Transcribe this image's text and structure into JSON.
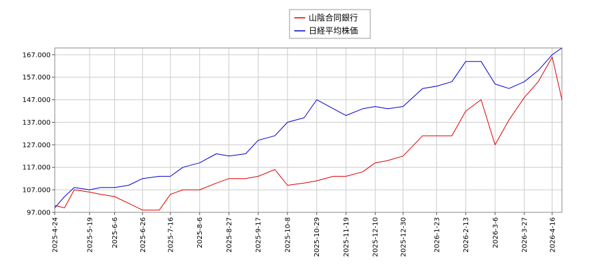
{
  "chart_data": {
    "type": "line",
    "title": "",
    "xlabel": "",
    "ylabel": "",
    "ylim": [
      97,
      170
    ],
    "y_ticks": [
      97,
      107,
      117,
      127,
      137,
      147,
      157,
      167
    ],
    "y_tick_labels": [
      "97.000",
      "107.000",
      "117.000",
      "127.000",
      "137.000",
      "147.000",
      "157.000",
      "167.000"
    ],
    "x_ticks": [
      "2025-4-24",
      "2025-5-19",
      "2025-6-6",
      "2025-6-26",
      "2025-7-16",
      "2025-8-6",
      "2025-8-27",
      "2025-9-17",
      "2025-10-8",
      "2025-10-29",
      "2025-11-19",
      "2025-12-10",
      "2025-12-30",
      "2026-1-23",
      "2026-2-13",
      "2026-3-6",
      "2026-3-27",
      "2026-4-16"
    ],
    "grid": true,
    "legend": "top-center",
    "x": [
      "2025-4-24",
      "2025-5-1",
      "2025-5-8",
      "2025-5-19",
      "2025-5-27",
      "2025-6-6",
      "2025-6-16",
      "2025-6-26",
      "2025-7-8",
      "2025-7-16",
      "2025-7-25",
      "2025-8-6",
      "2025-8-18",
      "2025-8-27",
      "2025-9-8",
      "2025-9-17",
      "2025-9-29",
      "2025-10-8",
      "2025-10-20",
      "2025-10-29",
      "2025-11-10",
      "2025-11-19",
      "2025-12-1",
      "2025-12-10",
      "2025-12-19",
      "2025-12-30",
      "2026-1-13",
      "2026-1-23",
      "2026-2-3",
      "2026-2-13",
      "2026-2-24",
      "2026-3-6",
      "2026-3-16",
      "2026-3-27",
      "2026-4-6",
      "2026-4-16",
      "2026-4-23"
    ],
    "series": [
      {
        "name": "山陰合同銀行",
        "color": "#dd0000",
        "values": [
          100,
          99,
          107,
          106,
          105,
          104,
          101,
          98,
          98,
          105,
          107,
          107,
          110,
          112,
          112,
          113,
          116,
          109,
          110,
          111,
          113,
          113,
          115,
          119,
          120,
          122,
          131,
          131,
          131,
          142,
          147,
          127,
          138,
          148,
          155,
          166,
          147
        ]
      },
      {
        "name": "日経平均株価",
        "color": "#0000cc",
        "values": [
          99,
          104,
          108,
          107,
          108,
          108,
          109,
          112,
          113,
          113,
          117,
          119,
          123,
          122,
          123,
          129,
          131,
          137,
          139,
          147,
          143,
          140,
          143,
          144,
          143,
          144,
          152,
          153,
          155,
          164,
          164,
          154,
          152,
          155,
          160,
          167,
          170
        ]
      }
    ]
  }
}
